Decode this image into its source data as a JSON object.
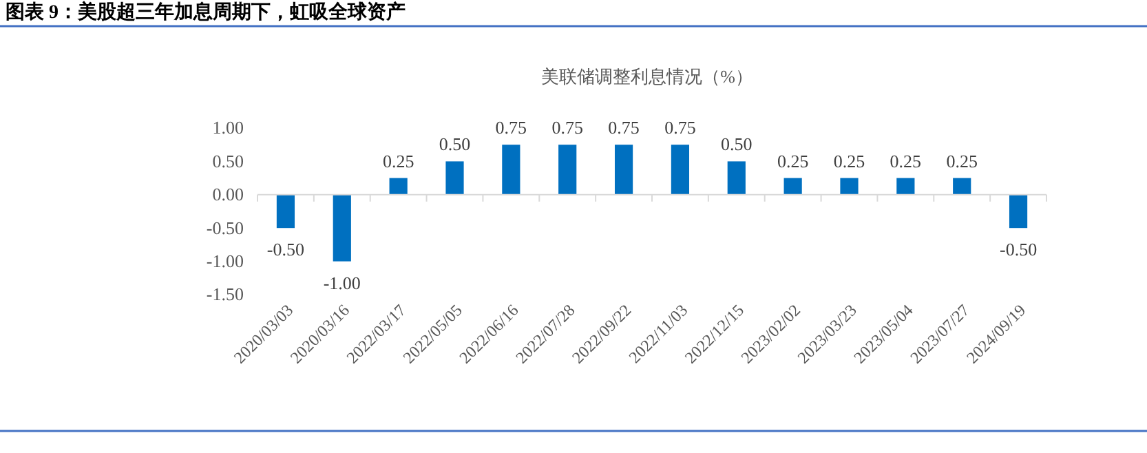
{
  "chart_data": {
    "type": "bar",
    "title": "图表 9：美股超三年加息周期下，虹吸全球资产",
    "subtitle": "美联储调整利息情况（%）",
    "categories": [
      "2020/03/03",
      "2020/03/16",
      "2022/03/17",
      "2022/05/05",
      "2022/06/16",
      "2022/07/28",
      "2022/09/22",
      "2022/11/03",
      "2022/12/15",
      "2023/02/02",
      "2023/03/23",
      "2023/05/04",
      "2023/07/27",
      "2024/09/19"
    ],
    "values": [
      -0.5,
      -1.0,
      0.25,
      0.5,
      0.75,
      0.75,
      0.75,
      0.75,
      0.5,
      0.25,
      0.25,
      0.25,
      0.25,
      -0.5
    ],
    "color": "#0070c0",
    "ylim": [
      -1.5,
      1.0
    ],
    "yticks": [
      {
        "value": -1.5,
        "label": "-1.50"
      },
      {
        "value": -1.0,
        "label": "-1.00"
      },
      {
        "value": -0.5,
        "label": "-0.50"
      },
      {
        "value": 0,
        "label": "0.00"
      },
      {
        "value": 0.5,
        "label": "0.50"
      },
      {
        "value": 1.0,
        "label": "1.00"
      }
    ],
    "value_labels": [
      "-0.50",
      "-1.00",
      "0.25",
      "0.50",
      "0.75",
      "0.75",
      "0.75",
      "0.75",
      "0.50",
      "0.25",
      "0.25",
      "0.25",
      "0.25",
      "-0.50"
    ]
  }
}
